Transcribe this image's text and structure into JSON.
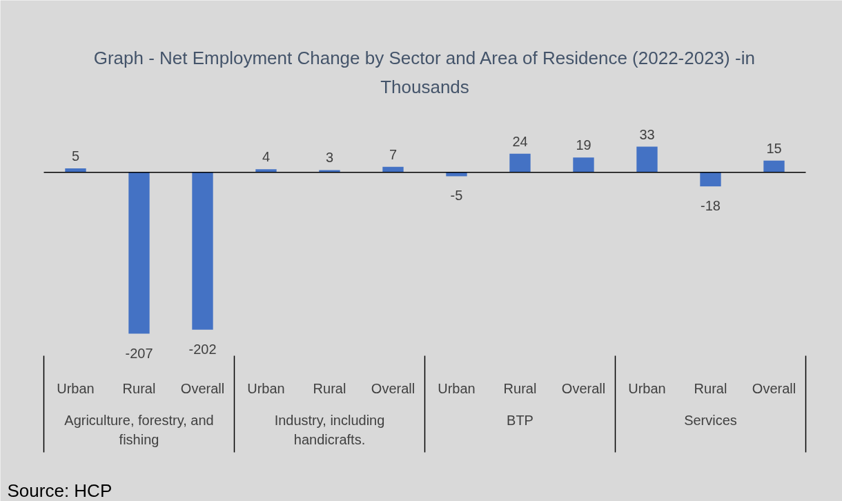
{
  "chart_data": {
    "type": "bar",
    "title": "Graph - Net Employment Change by Sector and Area of Residence (2022-2023) -in Thousands",
    "categories": [
      "Urban",
      "Rural",
      "Overall",
      "Urban",
      "Rural",
      "Overall",
      "Urban",
      "Rural",
      "Overall",
      "Urban",
      "Rural",
      "Overall"
    ],
    "values": [
      5,
      -207,
      -202,
      4,
      3,
      7,
      -5,
      24,
      19,
      33,
      -18,
      15
    ],
    "color": "#4472c4",
    "data_labels": true,
    "annotations": [
      "Agriculture, forestry, and fishing",
      "Industry, including handicrafts.",
      "BTP",
      "Services",
      "Source: HCP"
    ]
  }
}
